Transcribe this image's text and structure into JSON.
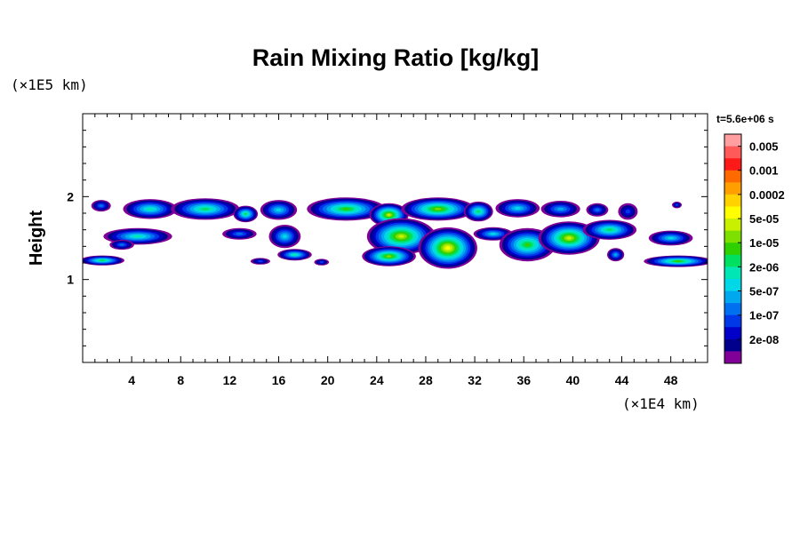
{
  "chart_data": {
    "type": "heatmap",
    "title": "Rain Mixing Ratio [kg/kg]",
    "ylabel": "Height",
    "xlabel": "",
    "x_unit_label": "(×1E4 km)",
    "y_unit_label": "(×1E5 km)",
    "time_label": "t=5.6e+06 s",
    "xlim": [
      0,
      51
    ],
    "ylim": [
      0,
      3
    ],
    "x_ticks": [
      4,
      8,
      12,
      16,
      20,
      24,
      28,
      32,
      36,
      40,
      44,
      48
    ],
    "y_ticks": [
      1,
      2
    ],
    "colorbar": {
      "labels": [
        "0.005",
        "0.001",
        "0.0002",
        "5e-05",
        "1e-05",
        "2e-06",
        "5e-07",
        "1e-07",
        "2e-08"
      ],
      "colors": [
        "#ff9f9f",
        "#ff5a5a",
        "#ff1a1a",
        "#ff6a00",
        "#ffa000",
        "#ffd200",
        "#ffff00",
        "#c8f000",
        "#7ee000",
        "#2ed000",
        "#00e060",
        "#00e6b4",
        "#00d8e8",
        "#00a8f0",
        "#0070f0",
        "#0038e8",
        "#0000c8",
        "#00008c",
        "#800098"
      ]
    },
    "regions": [
      {
        "x": 1.5,
        "y": 1.89,
        "rx": 0.8,
        "ry": 0.07,
        "level": 4
      },
      {
        "x": 5.5,
        "y": 1.85,
        "rx": 2.2,
        "ry": 0.12,
        "level": 7
      },
      {
        "x": 10.0,
        "y": 1.85,
        "rx": 2.8,
        "ry": 0.13,
        "level": 8
      },
      {
        "x": 13.3,
        "y": 1.79,
        "rx": 1.0,
        "ry": 0.1,
        "level": 8
      },
      {
        "x": 16.0,
        "y": 1.84,
        "rx": 1.5,
        "ry": 0.12,
        "level": 6
      },
      {
        "x": 21.5,
        "y": 1.85,
        "rx": 3.2,
        "ry": 0.14,
        "level": 9
      },
      {
        "x": 25.0,
        "y": 1.78,
        "rx": 1.6,
        "ry": 0.14,
        "level": 11
      },
      {
        "x": 29.0,
        "y": 1.85,
        "rx": 3.0,
        "ry": 0.14,
        "level": 10
      },
      {
        "x": 32.3,
        "y": 1.82,
        "rx": 1.2,
        "ry": 0.12,
        "level": 8
      },
      {
        "x": 35.5,
        "y": 1.86,
        "rx": 1.8,
        "ry": 0.11,
        "level": 6
      },
      {
        "x": 39.0,
        "y": 1.85,
        "rx": 1.6,
        "ry": 0.1,
        "level": 5
      },
      {
        "x": 42.0,
        "y": 1.84,
        "rx": 0.9,
        "ry": 0.08,
        "level": 4
      },
      {
        "x": 44.5,
        "y": 1.82,
        "rx": 0.8,
        "ry": 0.1,
        "level": 3
      },
      {
        "x": 48.5,
        "y": 1.9,
        "rx": 0.4,
        "ry": 0.04,
        "level": 3
      },
      {
        "x": 4.5,
        "y": 1.52,
        "rx": 2.8,
        "ry": 0.1,
        "level": 7
      },
      {
        "x": 3.2,
        "y": 1.42,
        "rx": 1.0,
        "ry": 0.06,
        "level": 4
      },
      {
        "x": 12.8,
        "y": 1.55,
        "rx": 1.4,
        "ry": 0.07,
        "level": 4
      },
      {
        "x": 16.5,
        "y": 1.52,
        "rx": 1.3,
        "ry": 0.14,
        "level": 6
      },
      {
        "x": 17.3,
        "y": 1.3,
        "rx": 1.4,
        "ry": 0.07,
        "level": 7
      },
      {
        "x": 26.0,
        "y": 1.52,
        "rx": 2.8,
        "ry": 0.22,
        "level": 11
      },
      {
        "x": 25.0,
        "y": 1.28,
        "rx": 2.2,
        "ry": 0.12,
        "level": 10
      },
      {
        "x": 29.8,
        "y": 1.38,
        "rx": 2.4,
        "ry": 0.25,
        "level": 12
      },
      {
        "x": 33.5,
        "y": 1.55,
        "rx": 1.6,
        "ry": 0.08,
        "level": 6
      },
      {
        "x": 36.3,
        "y": 1.42,
        "rx": 2.3,
        "ry": 0.2,
        "level": 9
      },
      {
        "x": 39.7,
        "y": 1.5,
        "rx": 2.5,
        "ry": 0.2,
        "level": 11
      },
      {
        "x": 43.0,
        "y": 1.6,
        "rx": 2.2,
        "ry": 0.12,
        "level": 8
      },
      {
        "x": 43.5,
        "y": 1.3,
        "rx": 0.7,
        "ry": 0.08,
        "level": 5
      },
      {
        "x": 48.0,
        "y": 1.5,
        "rx": 1.8,
        "ry": 0.09,
        "level": 6
      },
      {
        "x": 1.6,
        "y": 1.23,
        "rx": 1.8,
        "ry": 0.06,
        "level": 8
      },
      {
        "x": 48.6,
        "y": 1.22,
        "rx": 2.8,
        "ry": 0.07,
        "level": 9
      },
      {
        "x": 14.5,
        "y": 1.22,
        "rx": 0.8,
        "ry": 0.04,
        "level": 3
      },
      {
        "x": 19.5,
        "y": 1.21,
        "rx": 0.6,
        "ry": 0.04,
        "level": 3
      }
    ]
  }
}
